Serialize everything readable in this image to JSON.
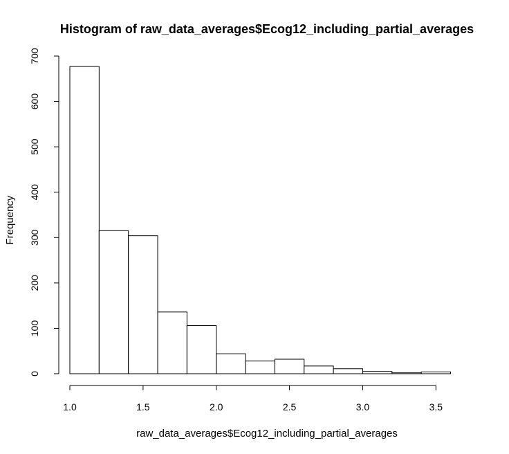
{
  "chart_data": {
    "type": "bar",
    "title": "Histogram of raw_data_averages$Ecog12_including_partial_averages",
    "xlabel": "raw_data_averages$Ecog12_including_partial_averages",
    "ylabel": "Frequency",
    "bin_edges": [
      1.0,
      1.2,
      1.4,
      1.6,
      1.8,
      2.0,
      2.2,
      2.4,
      2.6,
      2.8,
      3.0,
      3.2,
      3.4,
      3.6
    ],
    "values": [
      677,
      315,
      304,
      136,
      106,
      44,
      28,
      32,
      17,
      11,
      5,
      2,
      4
    ],
    "xlim": [
      1.0,
      3.6
    ],
    "ylim": [
      0,
      700
    ],
    "x_ticks": [
      "1.0",
      "1.5",
      "2.0",
      "2.5",
      "3.0",
      "3.5"
    ],
    "y_ticks": [
      "0",
      "100",
      "200",
      "300",
      "400",
      "500",
      "600",
      "700"
    ],
    "grid": false,
    "colors": {
      "bar_fill": "#ffffff",
      "bar_stroke": "#000000",
      "axis": "#000000"
    }
  }
}
